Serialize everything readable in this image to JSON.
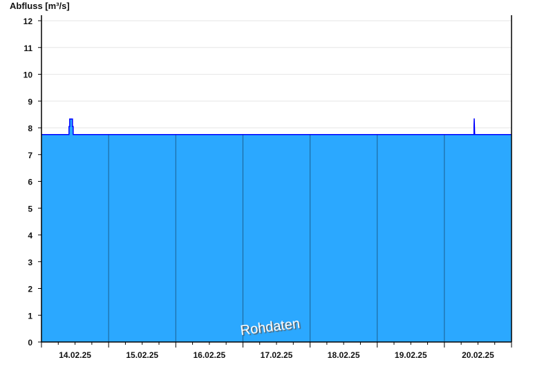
{
  "chart_data": {
    "type": "area",
    "ylabel": "Abfluss [m³/s]",
    "ylim": [
      0,
      12.2
    ],
    "yticks": [
      0,
      1,
      2,
      3,
      4,
      5,
      6,
      7,
      8,
      9,
      10,
      11,
      12
    ],
    "xlim": [
      "2025-02-14T00:00",
      "2025-02-21T00:00"
    ],
    "xtick_labels": [
      "14.02.25",
      "15.02.25",
      "16.02.25",
      "17.02.25",
      "18.02.25",
      "19.02.25",
      "20.02.25"
    ],
    "grid": true,
    "watermark": "Rohdaten",
    "fill_color": "#2ba8ff",
    "line_color": "#0000ff",
    "series": [
      {
        "points": [
          [
            "2025-02-14T00:00",
            7.75
          ],
          [
            "2025-02-14T09:50",
            7.75
          ],
          [
            "2025-02-14T09:50",
            8.05
          ],
          [
            "2025-02-14T10:05",
            8.05
          ],
          [
            "2025-02-14T10:05",
            8.33
          ],
          [
            "2025-02-14T11:05",
            8.33
          ],
          [
            "2025-02-14T11:05",
            8.05
          ],
          [
            "2025-02-14T11:20",
            8.05
          ],
          [
            "2025-02-14T11:20",
            7.75
          ],
          [
            "2025-02-20T10:35",
            7.75
          ],
          [
            "2025-02-20T10:35",
            8.05
          ],
          [
            "2025-02-20T10:40",
            8.35
          ],
          [
            "2025-02-20T10:45",
            8.05
          ],
          [
            "2025-02-20T10:50",
            7.75
          ],
          [
            "2025-02-21T00:00",
            7.75
          ]
        ]
      }
    ]
  }
}
